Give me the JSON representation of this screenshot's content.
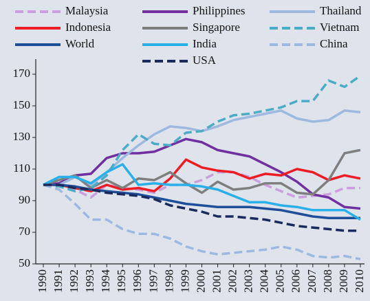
{
  "chart_data": {
    "type": "line",
    "categories": [
      "1990",
      "1991",
      "1992",
      "1993",
      "1994",
      "1995",
      "1996",
      "1997",
      "1998",
      "1999",
      "2000",
      "2001",
      "2002",
      "2003",
      "2004",
      "2005",
      "2006",
      "2007",
      "2008",
      "2009",
      "2010"
    ],
    "series": [
      {
        "name": "Malaysia",
        "color": "#c9a0dc",
        "dashed": true,
        "values": [
          100,
          100,
          97,
          92,
          100,
          98,
          97,
          95,
          100,
          100,
          103,
          108,
          108,
          105,
          100,
          96,
          92,
          93,
          94,
          98,
          98
        ]
      },
      {
        "name": "Philippines",
        "color": "#7030a0",
        "dashed": false,
        "values": [
          100,
          101,
          106,
          107,
          117,
          120,
          120,
          121,
          125,
          129,
          127,
          122,
          120,
          118,
          113,
          108,
          102,
          94,
          92,
          86,
          85
        ]
      },
      {
        "name": "Thailand",
        "color": "#9fb8de",
        "dashed": false,
        "values": [
          100,
          100,
          105,
          100,
          108,
          117,
          125,
          132,
          137,
          136,
          134,
          137,
          141,
          143,
          145,
          147,
          142,
          140,
          141,
          147,
          146
        ]
      },
      {
        "name": "Indonesia",
        "color": "#ee1c25",
        "dashed": false,
        "values": [
          100,
          100,
          98,
          96,
          100,
          97,
          98,
          96,
          104,
          116,
          111,
          109,
          108,
          104,
          107,
          106,
          110,
          108,
          103,
          106,
          104
        ]
      },
      {
        "name": "Singapore",
        "color": "#7f7f7f",
        "dashed": false,
        "values": [
          100,
          103,
          106,
          98,
          103,
          98,
          104,
          103,
          108,
          101,
          95,
          102,
          97,
          98,
          101,
          101,
          95,
          94,
          103,
          120,
          122
        ]
      },
      {
        "name": "Vietnam",
        "color": "#4bacc6",
        "dashed": true,
        "values": [
          100,
          99,
          96,
          98,
          106,
          122,
          132,
          126,
          125,
          133,
          134,
          140,
          144,
          145,
          147,
          149,
          153,
          153,
          166,
          162,
          169
        ]
      },
      {
        "name": "World",
        "color": "#1f4e99",
        "dashed": false,
        "values": [
          100,
          100,
          99,
          97,
          96,
          95,
          94,
          92,
          90,
          88,
          87,
          86,
          86,
          86,
          85,
          84,
          82,
          80,
          79,
          79,
          79
        ]
      },
      {
        "name": "India",
        "color": "#2ab0e8",
        "dashed": false,
        "values": [
          100,
          105,
          105,
          101,
          108,
          113,
          100,
          101,
          100,
          100,
          99,
          97,
          93,
          89,
          89,
          87,
          86,
          84,
          84,
          84,
          78
        ]
      },
      {
        "name": "China",
        "color": "#9fb8de",
        "dashed": true,
        "values": [
          100,
          97,
          88,
          78,
          78,
          72,
          69,
          69,
          66,
          61,
          58,
          56,
          57,
          58,
          59,
          61,
          59,
          55,
          54,
          55,
          53
        ]
      },
      {
        "name": "USA",
        "color": "#1a2a5a",
        "dashed": true,
        "values": [
          100,
          100,
          98,
          97,
          95,
          94,
          93,
          91,
          87,
          85,
          83,
          80,
          80,
          79,
          78,
          76,
          74,
          73,
          72,
          71,
          71
        ]
      }
    ],
    "ylim": [
      50,
      175
    ],
    "yticks": [
      50,
      70,
      90,
      110,
      130,
      150,
      170
    ]
  }
}
